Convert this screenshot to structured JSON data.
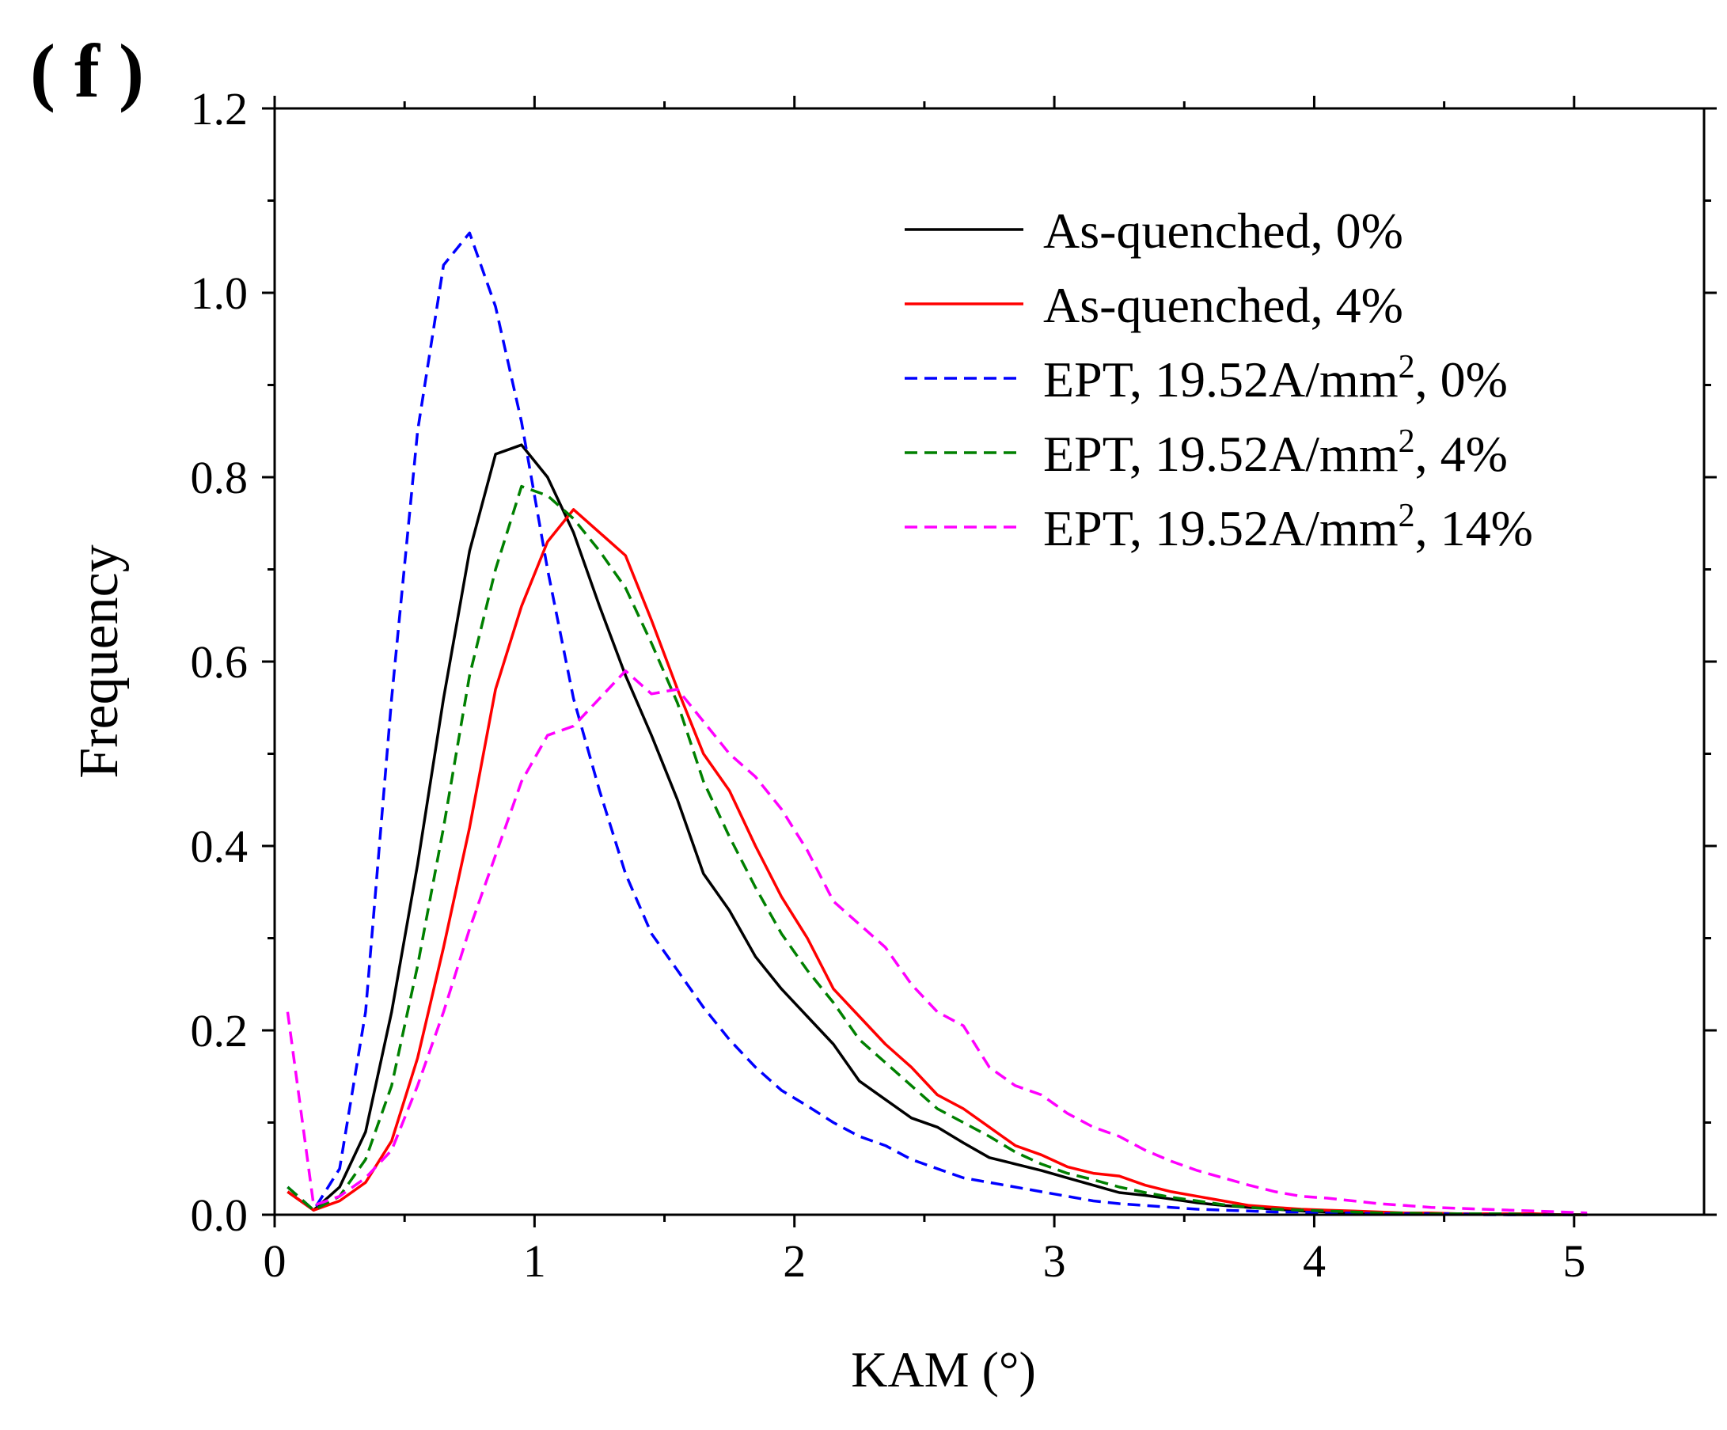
{
  "panel_label": "( f )",
  "chart_data": {
    "type": "line",
    "xlabel": "KAM (°)",
    "ylabel": "Frequency",
    "xlim": [
      0,
      5.5
    ],
    "ylim": [
      0,
      1.2
    ],
    "xticks": [
      0,
      1,
      2,
      3,
      4,
      5
    ],
    "yticks": [
      0.0,
      0.2,
      0.4,
      0.6,
      0.8,
      1.0,
      1.2
    ],
    "xtick_labels": [
      "0",
      "1",
      "2",
      "3",
      "4",
      "5"
    ],
    "ytick_labels": [
      "0.0",
      "0.2",
      "0.4",
      "0.6",
      "0.8",
      "1.0",
      "1.2"
    ],
    "legend_position": "top-right",
    "x": [
      0.05,
      0.15,
      0.25,
      0.35,
      0.45,
      0.55,
      0.65,
      0.75,
      0.85,
      0.95,
      1.05,
      1.15,
      1.25,
      1.35,
      1.45,
      1.55,
      1.65,
      1.75,
      1.85,
      1.95,
      2.05,
      2.15,
      2.25,
      2.35,
      2.45,
      2.55,
      2.65,
      2.75,
      2.85,
      2.95,
      3.05,
      3.15,
      3.25,
      3.35,
      3.45,
      3.55,
      3.65,
      3.75,
      3.85,
      3.95,
      4.05,
      4.15,
      4.25,
      4.35,
      4.45,
      4.55,
      4.65,
      4.75,
      4.85,
      4.95,
      5.05
    ],
    "series": [
      {
        "name": "As-quenched, 0%",
        "legend_main": "As-quenched, 0%",
        "legend_sup": "",
        "legend_tail": "",
        "color": "#000000",
        "dash": "solid",
        "values": [
          0.025,
          0.005,
          0.03,
          0.09,
          0.22,
          0.38,
          0.56,
          0.72,
          0.825,
          0.835,
          0.8,
          0.74,
          0.66,
          0.585,
          0.52,
          0.45,
          0.37,
          0.33,
          0.28,
          0.245,
          0.215,
          0.185,
          0.145,
          0.125,
          0.105,
          0.095,
          0.078,
          0.062,
          0.055,
          0.048,
          0.04,
          0.032,
          0.024,
          0.021,
          0.017,
          0.013,
          0.01,
          0.008,
          0.006,
          0.004,
          0.003,
          0.002,
          0.002,
          0.001,
          0.001,
          0.001,
          0.001,
          0.0,
          0.0,
          0.0,
          0.0
        ]
      },
      {
        "name": "As-quenched, 4%",
        "legend_main": "As-quenched, 4%",
        "legend_sup": "",
        "legend_tail": "",
        "color": "#ff0000",
        "dash": "solid",
        "values": [
          0.025,
          0.005,
          0.015,
          0.035,
          0.08,
          0.17,
          0.29,
          0.42,
          0.57,
          0.66,
          0.73,
          0.765,
          0.74,
          0.715,
          0.645,
          0.57,
          0.5,
          0.46,
          0.4,
          0.345,
          0.3,
          0.245,
          0.215,
          0.185,
          0.16,
          0.13,
          0.115,
          0.095,
          0.075,
          0.065,
          0.052,
          0.045,
          0.042,
          0.032,
          0.025,
          0.02,
          0.015,
          0.01,
          0.008,
          0.006,
          0.005,
          0.004,
          0.003,
          0.002,
          0.002,
          0.001,
          0.001,
          0.001,
          0.001,
          0.0,
          0.0
        ]
      },
      {
        "name": "EPT, 19.52A/mm2, 0%",
        "legend_main": "EPT, 19.52A/mm",
        "legend_sup": "2",
        "legend_tail": ", 0%",
        "color": "#0000ff",
        "dash": "dashed",
        "values": [
          0.03,
          0.005,
          0.05,
          0.22,
          0.56,
          0.85,
          1.03,
          1.065,
          0.985,
          0.86,
          0.7,
          0.56,
          0.46,
          0.37,
          0.305,
          0.265,
          0.225,
          0.19,
          0.16,
          0.135,
          0.118,
          0.1,
          0.085,
          0.075,
          0.06,
          0.05,
          0.04,
          0.035,
          0.03,
          0.025,
          0.02,
          0.015,
          0.012,
          0.01,
          0.008,
          0.006,
          0.005,
          0.004,
          0.003,
          0.003,
          0.002,
          0.002,
          0.001,
          0.001,
          0.001,
          0.001,
          0.0,
          0.0,
          0.0,
          0.0,
          0.0
        ]
      },
      {
        "name": "EPT, 19.52A/mm2, 4%",
        "legend_main": "EPT, 19.52A/mm",
        "legend_sup": "2",
        "legend_tail": ", 4%",
        "color": "#008000",
        "dash": "dashed",
        "values": [
          0.03,
          0.005,
          0.02,
          0.06,
          0.14,
          0.27,
          0.42,
          0.585,
          0.7,
          0.79,
          0.78,
          0.755,
          0.72,
          0.68,
          0.62,
          0.555,
          0.47,
          0.41,
          0.355,
          0.305,
          0.265,
          0.23,
          0.19,
          0.165,
          0.14,
          0.115,
          0.1,
          0.085,
          0.068,
          0.055,
          0.045,
          0.038,
          0.03,
          0.024,
          0.019,
          0.015,
          0.011,
          0.008,
          0.006,
          0.005,
          0.004,
          0.003,
          0.002,
          0.002,
          0.001,
          0.001,
          0.001,
          0.001,
          0.0,
          0.0,
          0.0
        ]
      },
      {
        "name": "EPT, 19.52A/mm2, 14%",
        "legend_main": "EPT, 19.52A/mm",
        "legend_sup": "2",
        "legend_tail": ", 14%",
        "color": "#ff00ff",
        "dash": "dashed",
        "values": [
          0.22,
          0.01,
          0.02,
          0.04,
          0.07,
          0.14,
          0.22,
          0.31,
          0.39,
          0.47,
          0.52,
          0.53,
          0.56,
          0.59,
          0.565,
          0.57,
          0.535,
          0.5,
          0.475,
          0.44,
          0.395,
          0.34,
          0.315,
          0.29,
          0.25,
          0.22,
          0.205,
          0.16,
          0.14,
          0.13,
          0.11,
          0.095,
          0.085,
          0.07,
          0.058,
          0.048,
          0.04,
          0.032,
          0.025,
          0.02,
          0.018,
          0.015,
          0.012,
          0.01,
          0.008,
          0.007,
          0.006,
          0.005,
          0.004,
          0.003,
          0.002
        ]
      }
    ]
  }
}
